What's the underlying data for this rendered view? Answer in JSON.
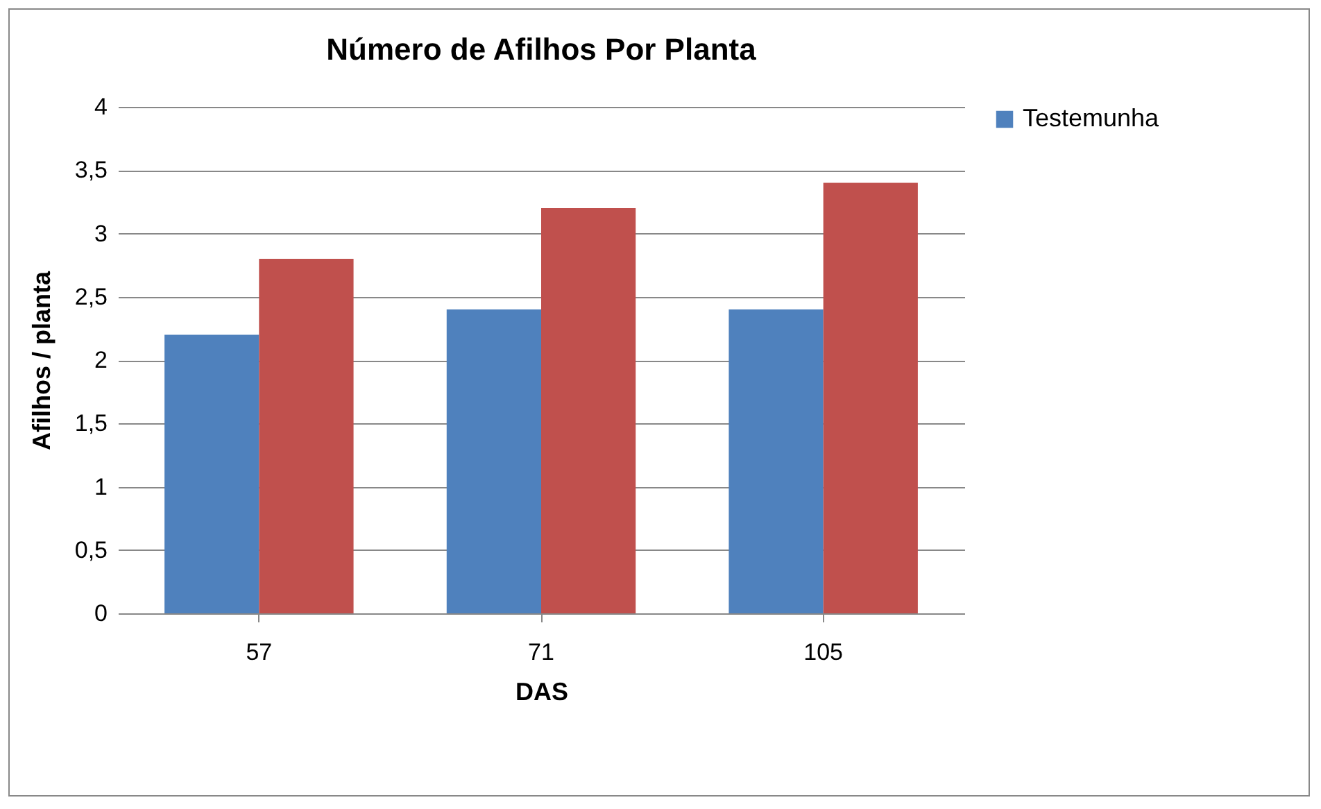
{
  "chart_data": {
    "type": "bar",
    "title": "Número de Afilhos Por Planta",
    "xlabel": "DAS",
    "ylabel": "Afilhos / planta",
    "categories": [
      "57",
      "71",
      "105"
    ],
    "series": [
      {
        "name": "Testemunha",
        "color": "#4f81bd",
        "values": [
          2.2,
          2.4,
          2.4
        ]
      },
      {
        "color": "#c0504d",
        "values": [
          2.8,
          3.2,
          3.4
        ]
      }
    ],
    "ylim": [
      0,
      4
    ],
    "yticks": [
      0,
      {
        "value": 0.5,
        "label": "0,5"
      },
      1,
      {
        "value": 1.5,
        "label": "1,5"
      },
      2,
      {
        "value": 2.5,
        "label": "2,5"
      },
      3,
      {
        "value": 3.5,
        "label": "3,5"
      },
      4
    ],
    "grid": "y",
    "legend": "right"
  }
}
